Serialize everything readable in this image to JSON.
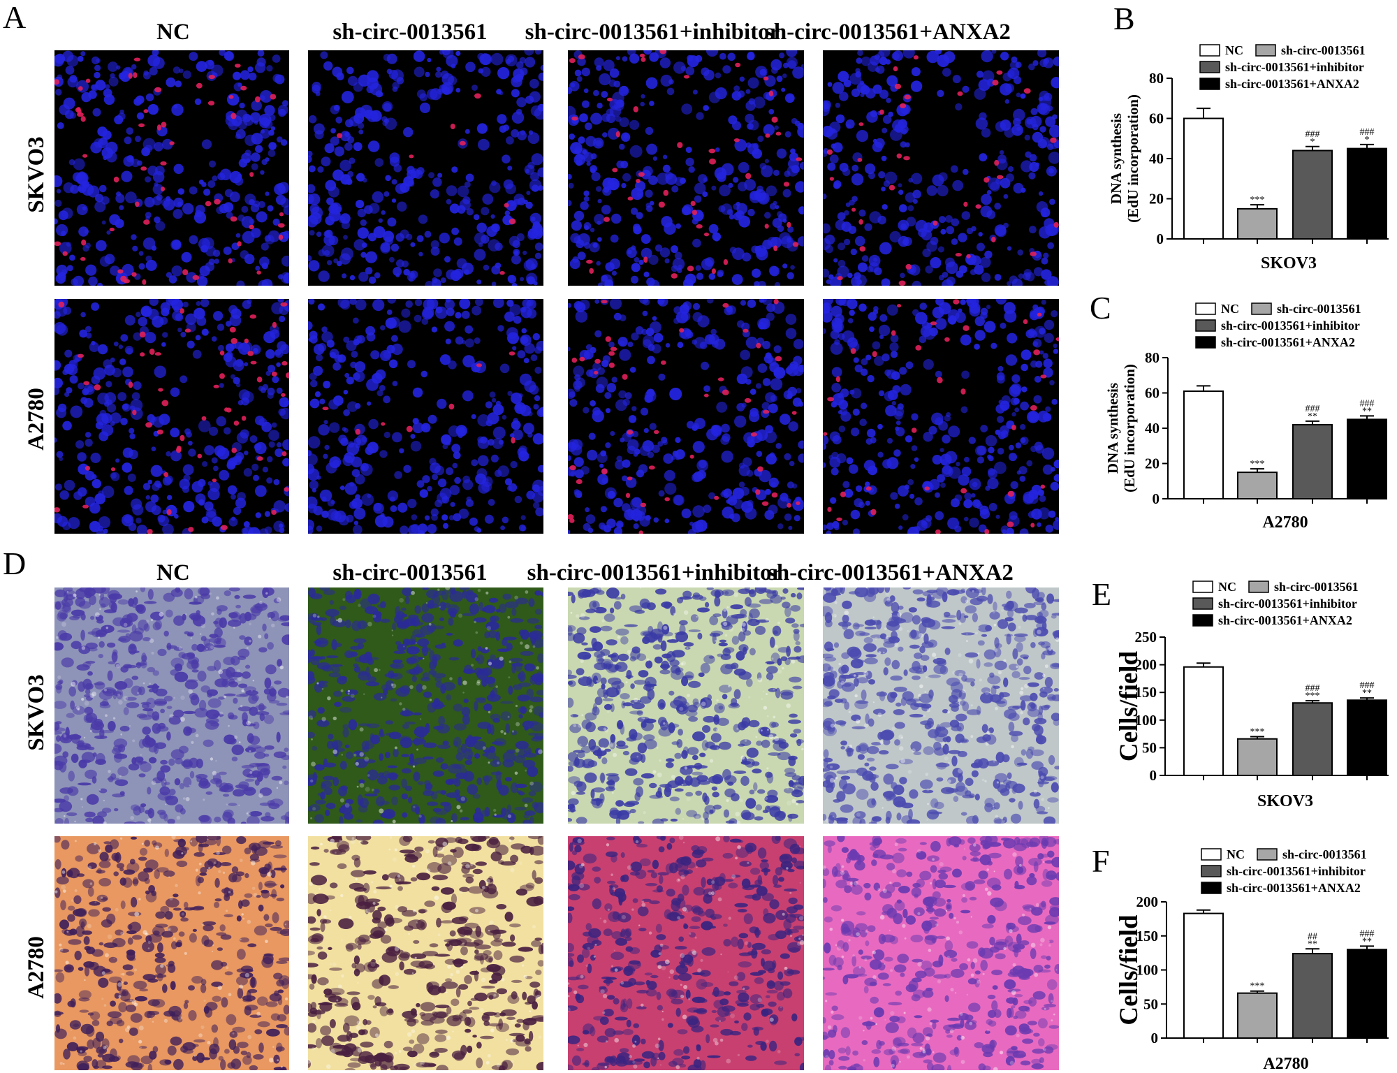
{
  "panels": {
    "A": "A",
    "B": "B",
    "C": "C",
    "D": "D",
    "E": "E",
    "F": "F"
  },
  "columns": [
    "NC",
    "sh-circ-0013561",
    "sh-circ-0013561+inhibitor",
    "sh-circ-0013561+ANXA2"
  ],
  "rows": [
    "SKVO3",
    "A2780"
  ],
  "colors": {
    "nc": "#ffffff",
    "sh": "#a6a6a6",
    "inhibitor": "#595959",
    "anxa2": "#000000",
    "edu_background": "#000000",
    "edu_nuclei": "#2424e0",
    "edu_positive": "#e0205a",
    "transwell_skov3": "#5a5ab8",
    "transwell_a2780": "#f2a060"
  },
  "chart_data": [
    {
      "panel": "B",
      "type": "bar",
      "categories": [
        "NC",
        "sh-circ-0013561",
        "sh-circ-0013561+inhibitor",
        "sh-circ-0013561+ANXA2"
      ],
      "values": [
        60,
        15,
        44,
        45
      ],
      "errors": [
        5,
        2,
        2,
        2
      ],
      "significance": [
        [
          "",
          ""
        ],
        [
          "***",
          ""
        ],
        [
          "*",
          "###"
        ],
        [
          "*",
          "###"
        ]
      ],
      "ylabel": [
        "DNA synthesis",
        "(EdU incorporation)"
      ],
      "xlabel": "SKOV3",
      "ylim": [
        0,
        80
      ],
      "yticks": [
        0,
        20,
        40,
        60,
        80
      ],
      "legend": "top"
    },
    {
      "panel": "C",
      "type": "bar",
      "categories": [
        "NC",
        "sh-circ-0013561",
        "sh-circ-0013561+inhibitor",
        "sh-circ-0013561+ANXA2"
      ],
      "values": [
        61,
        15,
        42,
        45
      ],
      "errors": [
        3,
        2,
        2,
        2
      ],
      "significance": [
        [
          "",
          ""
        ],
        [
          "***",
          ""
        ],
        [
          "**",
          "###"
        ],
        [
          "**",
          "###"
        ]
      ],
      "ylabel": [
        "DNA synthesis",
        "(EdU incorporation)"
      ],
      "xlabel": "A2780",
      "ylim": [
        0,
        80
      ],
      "yticks": [
        0,
        20,
        40,
        60,
        80
      ],
      "legend": "top"
    },
    {
      "panel": "E",
      "type": "bar",
      "categories": [
        "NC",
        "sh-circ-0013561",
        "sh-circ-0013561+inhibitor",
        "sh-circ-0013561+ANXA2"
      ],
      "values": [
        196,
        66,
        131,
        136
      ],
      "errors": [
        7,
        4,
        4,
        4
      ],
      "significance": [
        [
          "",
          ""
        ],
        [
          "***",
          ""
        ],
        [
          "***",
          "###"
        ],
        [
          "**",
          "###"
        ]
      ],
      "ylabel": [
        "Cells/field"
      ],
      "xlabel": "SKOV3",
      "ylim": [
        0,
        250
      ],
      "yticks": [
        0,
        50,
        100,
        150,
        200,
        250
      ],
      "legend": "top"
    },
    {
      "panel": "F",
      "type": "bar",
      "categories": [
        "NC",
        "sh-circ-0013561",
        "sh-circ-0013561+inhibitor",
        "sh-circ-0013561+ANXA2"
      ],
      "values": [
        183,
        66,
        124,
        130
      ],
      "errors": [
        5,
        3,
        7,
        5
      ],
      "significance": [
        [
          "",
          ""
        ],
        [
          "***",
          ""
        ],
        [
          "**",
          "##"
        ],
        [
          "**",
          "###"
        ]
      ],
      "ylabel": [
        "Cells/field"
      ],
      "xlabel": "A2780",
      "ylim": [
        0,
        200
      ],
      "yticks": [
        0,
        50,
        100,
        150,
        200
      ],
      "legend": "top"
    }
  ]
}
